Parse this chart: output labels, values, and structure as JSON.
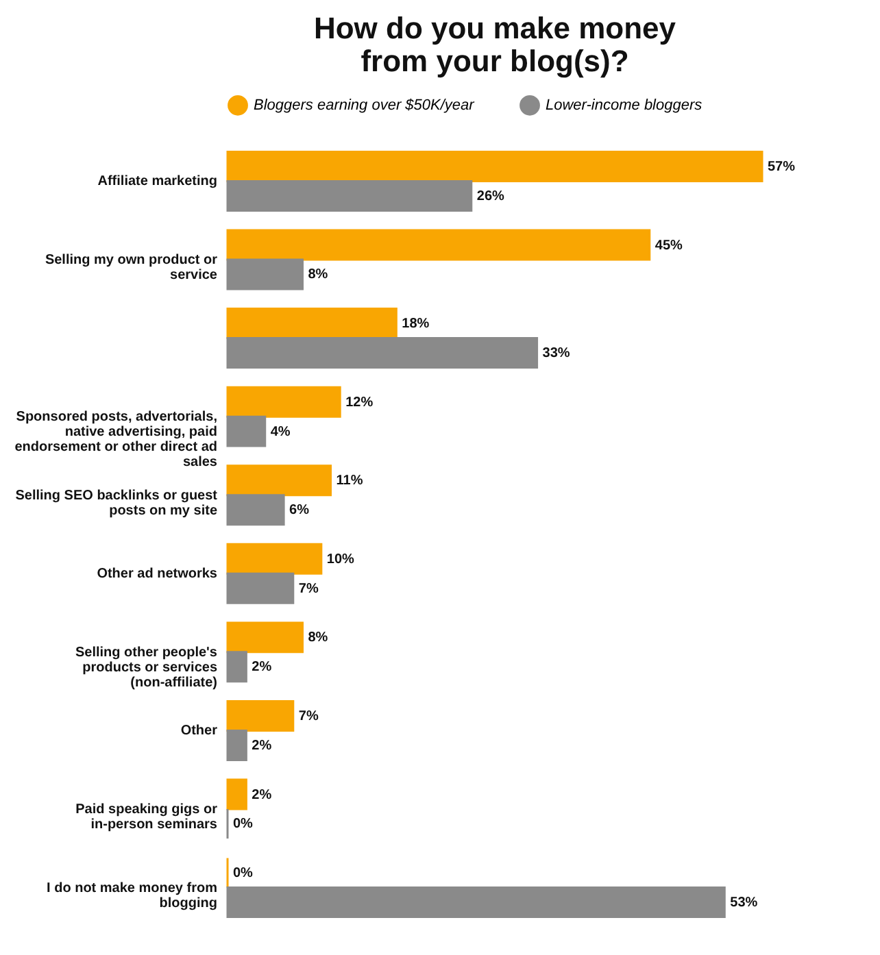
{
  "chart_data": {
    "type": "bar",
    "orientation": "horizontal",
    "title": "How do you make money from your blog(s)?",
    "legend": "top",
    "categories": [
      "Affiliate marketing",
      "Selling my own product or service",
      null,
      "Sponsored posts, advertorials, native advertising, paid endorsement or other direct ad sales",
      "Selling SEO backlinks or guest posts on my site",
      "Other ad networks",
      "Selling other people's products or services (non-affiliate)",
      "Other",
      "Paid speaking gigs or in-person seminars",
      "I do not make money from blogging"
    ],
    "series": [
      {
        "name": "Bloggers earning over $50K/year",
        "color": "#f9a602",
        "values": [
          57,
          45,
          18,
          12,
          11,
          10,
          8,
          7,
          2,
          0
        ],
        "value_labels": [
          "57%",
          "45%",
          "18%",
          "12%",
          "11%",
          "10%",
          "8%",
          "7%",
          "2%",
          "0%"
        ]
      },
      {
        "name": "Lower-income bloggers",
        "color": "#8a8a8a",
        "values": [
          26,
          8,
          33,
          4,
          6,
          7,
          2,
          2,
          0,
          53
        ],
        "value_labels": [
          "26%",
          "8%",
          "33%",
          "4%",
          "6%",
          "7%",
          "2%",
          "2%",
          "0%",
          "53%"
        ]
      }
    ]
  }
}
